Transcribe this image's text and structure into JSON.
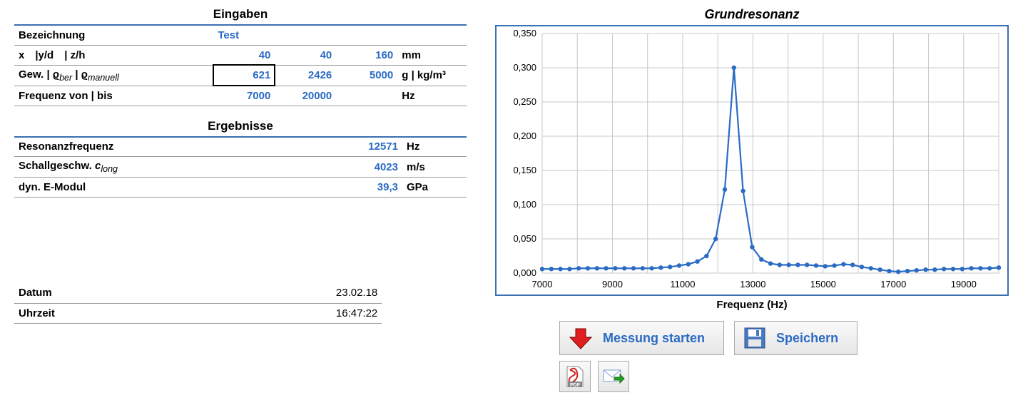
{
  "inputs": {
    "section_title": "Eingaben",
    "rows": {
      "bezeichnung": {
        "label": "Bezeichnung",
        "value": "Test"
      },
      "dims": {
        "label_html": "x |y/d | z/h",
        "x": "40",
        "y": "40",
        "z": "160",
        "unit": "mm"
      },
      "gew": {
        "label_html": "Gew. | ϱ",
        "label_sub1": "ber",
        "label_mid": " | ϱ",
        "label_sub2": "manuell",
        "v1": "621",
        "v2": "2426",
        "v3": "5000",
        "unit": "g | kg/m³"
      },
      "freq": {
        "label": "Frequenz von | bis",
        "from": "7000",
        "to": "20000",
        "unit": "Hz"
      }
    }
  },
  "results": {
    "section_title": "Ergebnisse",
    "rows": {
      "res": {
        "label": "Resonanzfrequenz",
        "value": "12571",
        "unit": "Hz"
      },
      "c": {
        "label_pre": "Schallgeschw. ",
        "label_sym": "c",
        "label_sub": "long",
        "value": "4023",
        "unit": "m/s"
      },
      "emod": {
        "label": "dyn. E-Modul",
        "value": "39,3",
        "unit": "GPa"
      }
    }
  },
  "footer": {
    "datum": {
      "label": "Datum",
      "value": "23.02.18"
    },
    "uhrzeit": {
      "label": "Uhrzeit",
      "value": "16:47:22"
    }
  },
  "chart": {
    "title": "Grundresonanz",
    "xlabel": "Frequenz (Hz)",
    "xlim": [
      7000,
      20000
    ],
    "ylim": [
      0,
      0.35
    ],
    "xticks": [
      7000,
      9000,
      11000,
      13000,
      15000,
      17000,
      19000
    ],
    "yticks": [
      0.0,
      0.05,
      0.1,
      0.15,
      0.2,
      0.25,
      0.3,
      0.35
    ],
    "ytick_labels": [
      "0,000",
      "0,050",
      "0,100",
      "0,150",
      "0,200",
      "0,250",
      "0,300",
      "0,350"
    ],
    "line_color": "#2a6bc4",
    "marker_color": "#2a6bc4",
    "grid_color": "#c8c8c8",
    "border_color": "#3a6fb0",
    "background_color": "#ffffff",
    "tick_font_size": 13,
    "label_font_size": 15,
    "marker_radius": 3.2,
    "line_width": 2.2,
    "data": [
      [
        7000,
        0.006
      ],
      [
        7260,
        0.006
      ],
      [
        7520,
        0.006
      ],
      [
        7780,
        0.006
      ],
      [
        8040,
        0.007
      ],
      [
        8300,
        0.007
      ],
      [
        8560,
        0.007
      ],
      [
        8820,
        0.007
      ],
      [
        9080,
        0.007
      ],
      [
        9340,
        0.007
      ],
      [
        9600,
        0.007
      ],
      [
        9860,
        0.007
      ],
      [
        10120,
        0.007
      ],
      [
        10380,
        0.008
      ],
      [
        10640,
        0.009
      ],
      [
        10900,
        0.011
      ],
      [
        11160,
        0.013
      ],
      [
        11420,
        0.017
      ],
      [
        11680,
        0.025
      ],
      [
        11940,
        0.05
      ],
      [
        12200,
        0.122
      ],
      [
        12460,
        0.3
      ],
      [
        12720,
        0.12
      ],
      [
        12980,
        0.038
      ],
      [
        13240,
        0.02
      ],
      [
        13500,
        0.014
      ],
      [
        13760,
        0.012
      ],
      [
        14020,
        0.012
      ],
      [
        14280,
        0.012
      ],
      [
        14540,
        0.012
      ],
      [
        14800,
        0.011
      ],
      [
        15060,
        0.01
      ],
      [
        15320,
        0.011
      ],
      [
        15580,
        0.013
      ],
      [
        15840,
        0.012
      ],
      [
        16100,
        0.009
      ],
      [
        16360,
        0.007
      ],
      [
        16620,
        0.005
      ],
      [
        16880,
        0.003
      ],
      [
        17140,
        0.002
      ],
      [
        17400,
        0.003
      ],
      [
        17660,
        0.004
      ],
      [
        17920,
        0.005
      ],
      [
        18180,
        0.005
      ],
      [
        18440,
        0.006
      ],
      [
        18700,
        0.006
      ],
      [
        18960,
        0.006
      ],
      [
        19220,
        0.007
      ],
      [
        19480,
        0.007
      ],
      [
        19740,
        0.007
      ],
      [
        20000,
        0.008
      ]
    ]
  },
  "buttons": {
    "start": "Messung starten",
    "save": "Speichern"
  }
}
